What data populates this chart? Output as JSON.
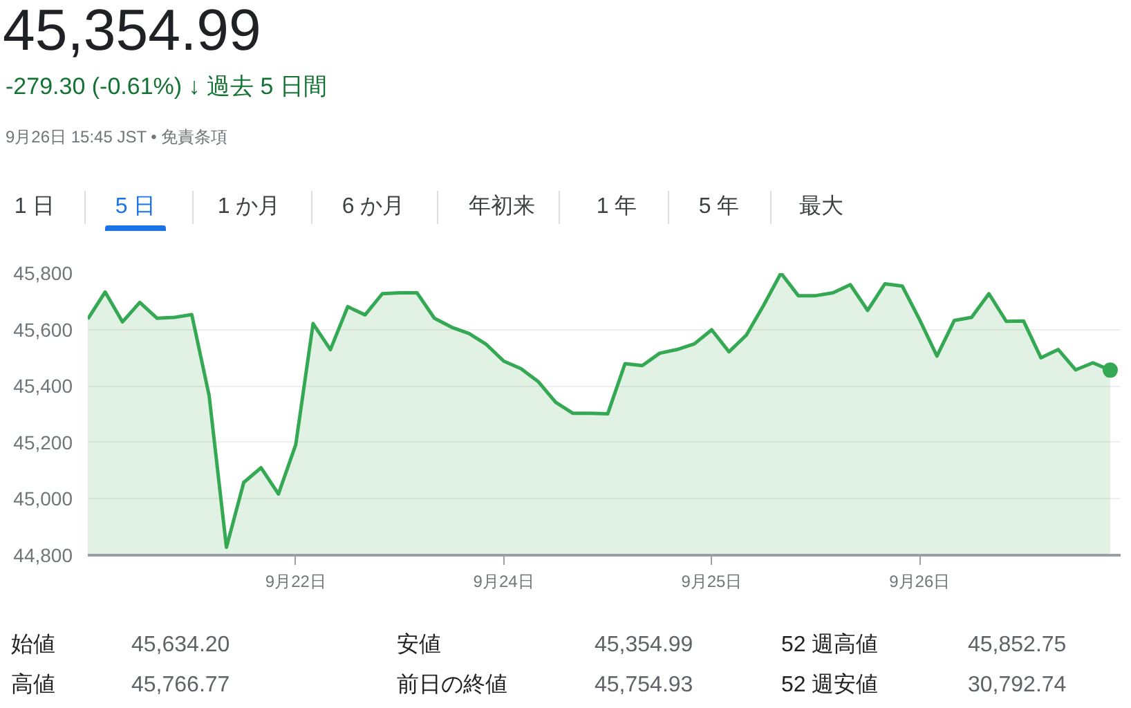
{
  "chart_data": {
    "type": "area",
    "title": "45,354.99",
    "subtitle": "-279.30 (-0.61%) ↓ 過去 5 日間",
    "annotations": [
      "9月26日 15:45 JST • 免責条項",
      "1 日",
      "5 日",
      "1 か月",
      "6 か月",
      "年初来",
      "1 年",
      "5 年",
      "最大",
      "始値",
      "45,634.20",
      "高値",
      "45,766.77",
      "安値",
      "45,354.99",
      "前日の終値",
      "45,754.93",
      "52 週高値",
      "45,852.75",
      "52 週安値",
      "30,792.74"
    ],
    "categories": [
      null,
      null,
      null,
      null,
      null,
      null,
      null,
      null,
      null,
      null,
      null,
      null,
      "9月22日",
      null,
      null,
      null,
      null,
      null,
      null,
      null,
      null,
      null,
      null,
      null,
      "9月24日",
      null,
      null,
      null,
      null,
      null,
      null,
      null,
      null,
      null,
      null,
      null,
      "9月25日",
      null,
      null,
      null,
      null,
      null,
      null,
      null,
      null,
      null,
      null,
      null,
      "9月26日",
      null,
      null,
      null,
      null,
      null,
      null,
      null,
      null,
      null,
      null,
      null
    ],
    "series": [
      {
        "color": "#34a853",
        "values": [
          45637,
          45733,
          45627,
          45696,
          45640,
          45643,
          45653,
          45366,
          44828,
          45058,
          45110,
          45017,
          45192,
          45621,
          45529,
          45681,
          45652,
          45727,
          45730,
          45730,
          45640,
          45608,
          45586,
          45547,
          45488,
          45461,
          45415,
          45342,
          45303,
          45303,
          45301,
          45479,
          45472,
          45516,
          45529,
          45549,
          45599,
          45521,
          45580,
          45686,
          45800,
          45720,
          45720,
          45730,
          45759,
          45668,
          45762,
          45754,
          45635,
          45506,
          45632,
          45643,
          45727,
          45629,
          45630,
          45500,
          45529,
          45457,
          45482,
          45456
        ]
      }
    ],
    "ylim": [
      44800,
      45800
    ],
    "yticks": [
      {
        "value": 44800,
        "label": "44,800"
      },
      {
        "value": 45000,
        "label": "45,000"
      },
      {
        "value": 45200,
        "label": "45,200"
      },
      {
        "value": 45400,
        "label": "45,400"
      },
      {
        "value": 45600,
        "label": "45,600"
      },
      {
        "value": 45800,
        "label": "45,800"
      }
    ],
    "grid": "y"
  }
}
